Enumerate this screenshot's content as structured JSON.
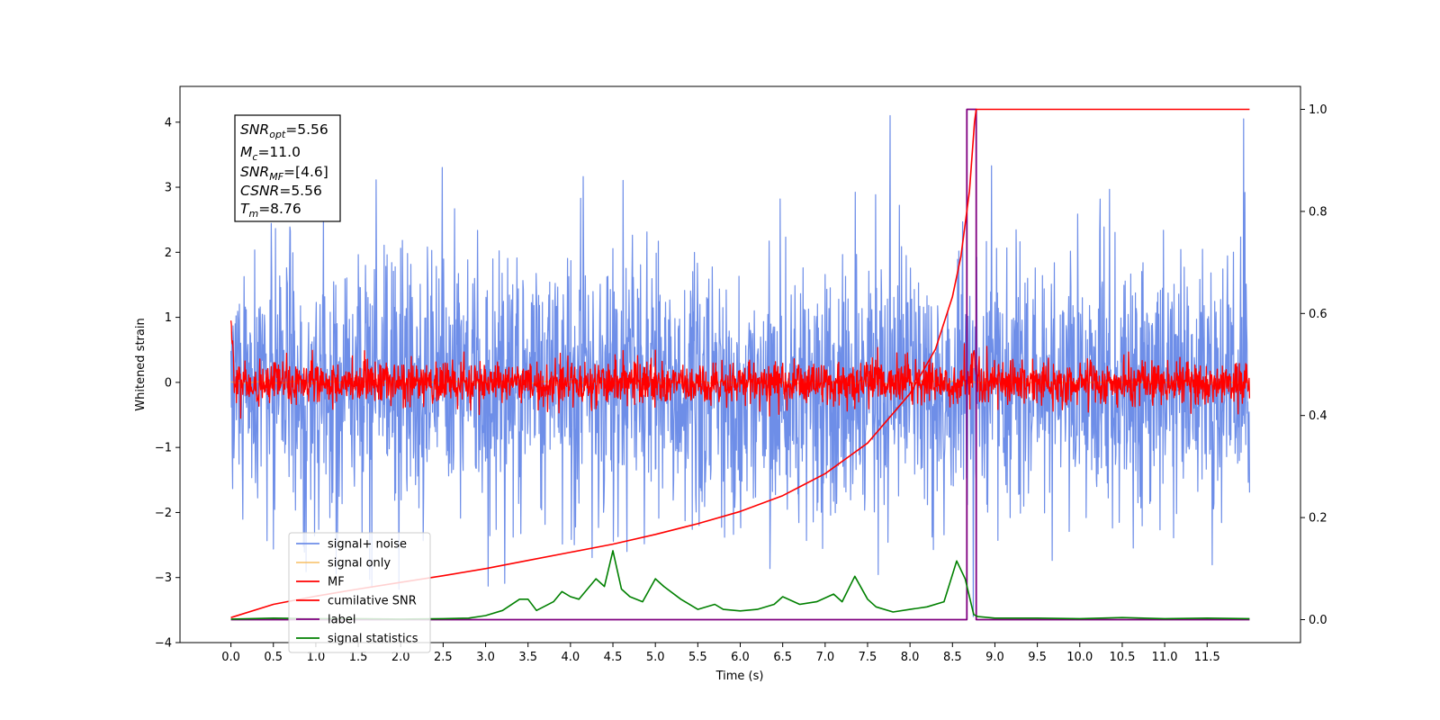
{
  "chart_data": {
    "type": "line",
    "title": "",
    "xlabel": "Time (s)",
    "ylabel": "Whitened strain",
    "xlim": [
      -0.6,
      12.6
    ],
    "ylim": [
      -4.0,
      4.55
    ],
    "y2lim": [
      -0.045,
      1.045
    ],
    "x_ticks": [
      "0.0",
      "0.5",
      "1.0",
      "1.5",
      "2.0",
      "2.5",
      "3.0",
      "3.5",
      "4.0",
      "4.5",
      "5.0",
      "5.5",
      "6.0",
      "6.5",
      "7.0",
      "7.5",
      "8.0",
      "8.5",
      "9.0",
      "9.5",
      "10.0",
      "10.5",
      "11.0",
      "11.5"
    ],
    "y_ticks": [
      "−4",
      "−3",
      "−2",
      "−1",
      "0",
      "1",
      "2",
      "3",
      "4"
    ],
    "y2_ticks": [
      "0.0",
      "0.2",
      "0.4",
      "0.6",
      "0.8",
      "1.0"
    ],
    "grid": false,
    "legend_position": "lower-left",
    "colors": {
      "signal_noise": "#6e8ee8",
      "signal_only": "#f5b042",
      "mf": "#ff0000",
      "cumulative_snr": "#ff0000",
      "label": "#800080",
      "signal_statistics": "#008000"
    },
    "annotation": {
      "snr_opt_label": "SNR",
      "snr_opt_sub": "opt",
      "snr_opt_value": "=5.56",
      "mc_label": "M",
      "mc_sub": "c",
      "mc_value": "=11.0",
      "snr_mf_label": "SNR",
      "snr_mf_sub": "MF",
      "snr_mf_value": "=[4.6]",
      "csnr_label": "CSNR",
      "csnr_value": "=5.56",
      "tm_label": "T",
      "tm_sub": "m",
      "tm_value": "=8.76"
    },
    "series": [
      {
        "name": "signal+ noise",
        "axis": "left",
        "kind": "noise",
        "x_range": [
          0.0,
          12.0
        ],
        "mean": 0.0,
        "std": 1.0,
        "min": -3.6,
        "max": 4.1
      },
      {
        "name": "signal only",
        "axis": "left",
        "kind": "chirp",
        "merger_time": 8.76,
        "peak": 0.35
      },
      {
        "name": "MF",
        "axis": "left",
        "kind": "noise",
        "x_range": [
          0.0,
          12.0
        ],
        "mean": 0.0,
        "std": 0.17,
        "start_value": 0.95
      },
      {
        "name": "cumilative SNR",
        "axis": "right",
        "x": [
          0.0,
          0.5,
          1.0,
          1.5,
          2.0,
          2.5,
          3.0,
          3.5,
          4.0,
          4.5,
          5.0,
          5.5,
          6.0,
          6.5,
          7.0,
          7.5,
          8.0,
          8.3,
          8.5,
          8.6,
          8.7,
          8.76,
          8.78,
          9.0,
          10.0,
          11.0,
          12.0
        ],
        "values": [
          0.004,
          0.03,
          0.046,
          0.06,
          0.073,
          0.086,
          0.1,
          0.116,
          0.132,
          0.148,
          0.167,
          0.188,
          0.212,
          0.243,
          0.286,
          0.346,
          0.443,
          0.53,
          0.633,
          0.712,
          0.84,
          0.975,
          1.0,
          1.0,
          1.0,
          1.0,
          1.0
        ]
      },
      {
        "name": "label",
        "axis": "right",
        "x": [
          0.0,
          8.67,
          8.67,
          8.78,
          8.78,
          12.0
        ],
        "values": [
          0.0,
          0.0,
          1.0,
          1.0,
          0.0,
          0.0
        ]
      },
      {
        "name": "signal statistics",
        "axis": "right",
        "x": [
          0.0,
          0.5,
          1.0,
          1.5,
          2.0,
          2.5,
          2.8,
          3.0,
          3.2,
          3.4,
          3.5,
          3.6,
          3.8,
          3.9,
          4.0,
          4.1,
          4.2,
          4.3,
          4.4,
          4.5,
          4.6,
          4.7,
          4.85,
          5.0,
          5.1,
          5.3,
          5.5,
          5.7,
          5.8,
          6.0,
          6.2,
          6.4,
          6.5,
          6.7,
          6.9,
          7.1,
          7.2,
          7.35,
          7.5,
          7.6,
          7.8,
          8.0,
          8.2,
          8.4,
          8.55,
          8.65,
          8.75,
          8.8,
          9.0,
          9.5,
          10.0,
          10.5,
          11.0,
          11.5,
          12.0
        ],
        "values": [
          0.001,
          0.003,
          0.002,
          0.002,
          0.001,
          0.002,
          0.003,
          0.008,
          0.018,
          0.04,
          0.04,
          0.018,
          0.035,
          0.055,
          0.045,
          0.04,
          0.06,
          0.08,
          0.065,
          0.135,
          0.06,
          0.045,
          0.035,
          0.08,
          0.065,
          0.04,
          0.02,
          0.03,
          0.02,
          0.017,
          0.02,
          0.03,
          0.045,
          0.03,
          0.035,
          0.05,
          0.035,
          0.085,
          0.04,
          0.025,
          0.015,
          0.02,
          0.025,
          0.035,
          0.115,
          0.08,
          0.01,
          0.006,
          0.003,
          0.003,
          0.002,
          0.004,
          0.002,
          0.003,
          0.002
        ]
      }
    ]
  }
}
